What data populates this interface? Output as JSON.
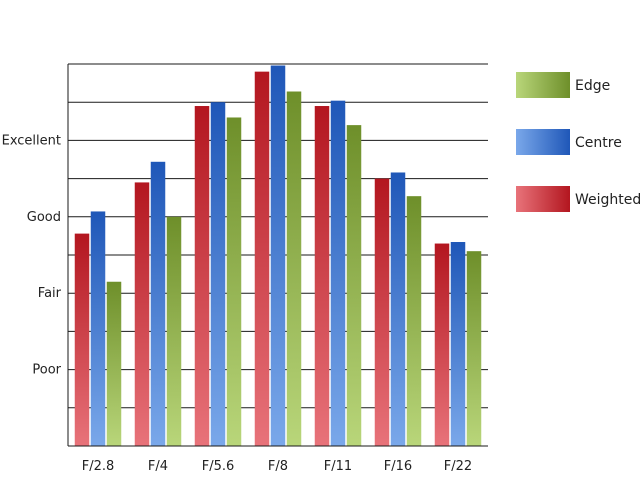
{
  "chart_data": {
    "type": "bar",
    "title": "",
    "xlabel": "",
    "ylabel": "",
    "categories": [
      "F/2.8",
      "F/4",
      "F/5.6",
      "F/8",
      "F/11",
      "F/16",
      "F/22"
    ],
    "y_ticks": [
      "Poor",
      "Fair",
      "Good",
      "Excellent"
    ],
    "y_tick_values": [
      1,
      2,
      3,
      4
    ],
    "ylim": [
      0,
      5
    ],
    "grid": true,
    "legend_position": "right",
    "series": [
      {
        "name": "Weighted",
        "values": [
          2.78,
          3.45,
          4.45,
          4.9,
          4.45,
          3.5,
          2.65
        ],
        "color_top": "#b3161f",
        "color_bottom": "#e8737a"
      },
      {
        "name": "Centre",
        "values": [
          3.07,
          3.72,
          4.5,
          4.98,
          4.52,
          3.58,
          2.67
        ],
        "color_top": "#1f57b8",
        "color_bottom": "#7aa8ea"
      },
      {
        "name": "Edge",
        "values": [
          2.15,
          3.0,
          4.3,
          4.64,
          4.2,
          3.27,
          2.55
        ],
        "color_top": "#6e8f2a",
        "color_bottom": "#b9d67a"
      }
    ],
    "legend_order": [
      "Edge",
      "Centre",
      "Weighted"
    ]
  }
}
